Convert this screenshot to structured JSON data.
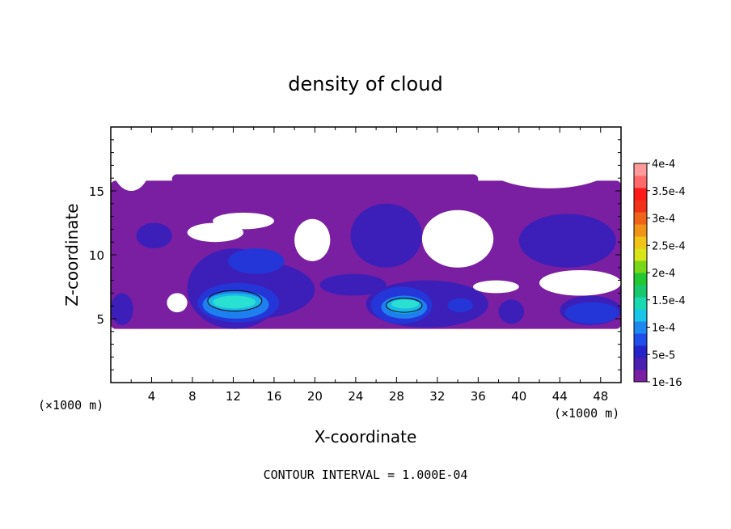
{
  "chart_data": {
    "type": "heatmap",
    "title": "density of cloud",
    "xlabel": "X-coordinate",
    "ylabel": "Z-coordinate",
    "x_unit": "(×1000 m)",
    "z_unit": "(×1000 m)",
    "xlim": [
      0,
      50
    ],
    "ylim": [
      0,
      20
    ],
    "x_ticks": [
      "4",
      "8",
      "12",
      "16",
      "20",
      "24",
      "28",
      "32",
      "36",
      "40",
      "44",
      "48"
    ],
    "y_ticks": [
      "5",
      "10",
      "15"
    ],
    "footnote": "CONTOUR INTERVAL = 1.000E-04",
    "colorbar": {
      "labels": [
        "1e-16",
        "5e-5",
        "1e-4",
        "1.5e-4",
        "2e-4",
        "2.5e-4",
        "3e-4",
        "3.5e-4",
        "4e-4"
      ],
      "colors": [
        "#7a1fa2",
        "#4b1fb0",
        "#2424c8",
        "#1f4fe8",
        "#1e88ee",
        "#19c6e8",
        "#19d9b0",
        "#19c86e",
        "#22c832",
        "#7ad619",
        "#d8e619",
        "#f0c419",
        "#f09419",
        "#f06419",
        "#f03219",
        "#ff1a1a",
        "#ff6a6a",
        "#ff9a9a"
      ]
    },
    "regions": [
      {
        "level": 0,
        "x": [
          0.0,
          50.0
        ],
        "z": [
          4.2,
          15.8
        ]
      },
      {
        "level": 0,
        "x": [
          6.0,
          36.0
        ],
        "z": [
          15.0,
          16.3
        ]
      },
      {
        "level": 1,
        "x": [
          0.0,
          2.2
        ],
        "z": [
          4.5,
          7.0
        ]
      },
      {
        "level": 1,
        "x": [
          2.5,
          6.0
        ],
        "z": [
          10.5,
          12.5
        ]
      },
      {
        "level": 1,
        "x": [
          7.5,
          16.8
        ],
        "z": [
          4.2,
          10.5
        ]
      },
      {
        "level": 1,
        "x": [
          8.0,
          20.0
        ],
        "z": [
          5.0,
          9.5
        ]
      },
      {
        "level": 1,
        "x": [
          20.5,
          27.0
        ],
        "z": [
          6.8,
          8.5
        ]
      },
      {
        "level": 1,
        "x": [
          23.5,
          30.5
        ],
        "z": [
          9.0,
          14.0
        ]
      },
      {
        "level": 1,
        "x": [
          25.0,
          37.0
        ],
        "z": [
          4.3,
          8.0
        ]
      },
      {
        "level": 1,
        "x": [
          38.0,
          40.5
        ],
        "z": [
          4.6,
          6.5
        ]
      },
      {
        "level": 1,
        "x": [
          40.0,
          49.5
        ],
        "z": [
          9.0,
          13.2
        ]
      },
      {
        "level": 1,
        "x": [
          44.0,
          50.0
        ],
        "z": [
          4.5,
          6.8
        ]
      },
      {
        "level": 2,
        "x": [
          8.5,
          16.5
        ],
        "z": [
          4.7,
          7.8
        ]
      },
      {
        "level": 2,
        "x": [
          11.5,
          17.0
        ],
        "z": [
          8.5,
          10.5
        ]
      },
      {
        "level": 2,
        "x": [
          25.5,
          31.5
        ],
        "z": [
          4.6,
          7.5
        ]
      },
      {
        "level": 2,
        "x": [
          33.0,
          35.5
        ],
        "z": [
          5.5,
          6.6
        ]
      },
      {
        "level": 2,
        "x": [
          44.5,
          49.8
        ],
        "z": [
          4.6,
          6.3
        ]
      },
      {
        "level": 3,
        "x": [
          9.0,
          15.5
        ],
        "z": [
          5.0,
          7.2
        ]
      },
      {
        "level": 3,
        "x": [
          26.5,
          31.0
        ],
        "z": [
          5.0,
          6.8
        ]
      },
      {
        "level": 4,
        "x": [
          9.5,
          14.8
        ],
        "z": [
          5.6,
          7.0
        ]
      },
      {
        "level": 4,
        "x": [
          27.0,
          30.5
        ],
        "z": [
          5.4,
          6.6
        ]
      },
      {
        "level": 5,
        "x": [
          10.0,
          14.2
        ],
        "z": [
          5.8,
          6.8
        ]
      },
      {
        "level": 5,
        "x": [
          27.5,
          30.2
        ],
        "z": [
          5.8,
          6.5
        ]
      }
    ],
    "gaps": [
      {
        "x": [
          0.0,
          4.0
        ],
        "z": [
          15.0,
          20.0
        ]
      },
      {
        "x": [
          36.0,
          50.0
        ],
        "z": [
          15.2,
          20.0
        ]
      },
      {
        "x": [
          7.5,
          13.0
        ],
        "z": [
          11.0,
          12.5
        ]
      },
      {
        "x": [
          10.0,
          16.0
        ],
        "z": [
          12.0,
          13.3
        ]
      },
      {
        "x": [
          18.0,
          21.5
        ],
        "z": [
          9.5,
          12.8
        ]
      },
      {
        "x": [
          30.5,
          37.5
        ],
        "z": [
          9.0,
          13.5
        ]
      },
      {
        "x": [
          42.0,
          50.0
        ],
        "z": [
          6.8,
          8.8
        ]
      },
      {
        "x": [
          5.5,
          7.5
        ],
        "z": [
          5.5,
          7.0
        ]
      },
      {
        "x": [
          35.5,
          40.0
        ],
        "z": [
          7.0,
          8.0
        ]
      }
    ],
    "contours_1e-4": [
      {
        "x": [
          9.5,
          14.8
        ],
        "z": [
          5.6,
          7.2
        ]
      },
      {
        "x": [
          27.0,
          30.5
        ],
        "z": [
          5.5,
          6.6
        ]
      }
    ]
  }
}
